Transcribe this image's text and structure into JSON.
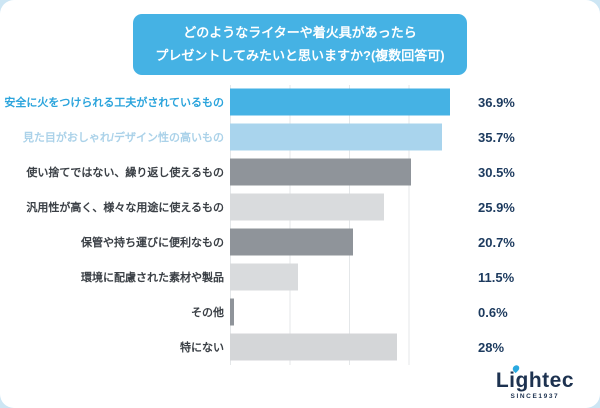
{
  "background_color": "#cde6f4",
  "title": {
    "line1": "どのようなライターや着火具があったら",
    "line2": "プレゼントしてみたいと思いますか?(複数回答可)",
    "box_color": "#45b2e4",
    "text_color": "#ffffff"
  },
  "chart_data": {
    "type": "bar",
    "orientation": "horizontal",
    "title": "どのようなライターや着火具があったらプレゼントしてみたいと思いますか?(複数回答可)",
    "categories": [
      "安全に火をつけられる工夫がされているもの",
      "見た目がおしゃれ/デザイン性の高いもの",
      "使い捨てではない、繰り返し使えるもの",
      "汎用性が高く、様々な用途に使えるもの",
      "保管や持ち運びに便利なもの",
      "環境に配慮された素材や製品",
      "その他",
      "特にない"
    ],
    "values": [
      36.9,
      35.7,
      30.5,
      25.9,
      20.7,
      11.5,
      0.6,
      28
    ],
    "value_labels": [
      "36.9%",
      "35.7%",
      "30.5%",
      "25.9%",
      "20.7%",
      "11.5%",
      "0.6%",
      "28%"
    ],
    "xlabel": "",
    "ylabel": "",
    "xlim": [
      0,
      40
    ],
    "grid": "vertical light-gray lines every 10 percentage points",
    "legend": false,
    "bar_colors": [
      "#45b2e4",
      "#a9d4ed",
      "#8f949a",
      "#d9dbdd",
      "#8f949a",
      "#d9dbdd",
      "#8f949a",
      "#d4d6d8"
    ],
    "label_colors": [
      "#2ba4dc",
      "#abd2e9",
      "#3b4046",
      "#3b4046",
      "#3b4046",
      "#3b4046",
      "#3b4046",
      "#3b4046"
    ],
    "value_label_color": "#1c3a5e"
  },
  "logo": {
    "name": "Lightec",
    "since": "SINCE1937",
    "color": "#1d3250",
    "flame_color": "#2aa9e0"
  }
}
